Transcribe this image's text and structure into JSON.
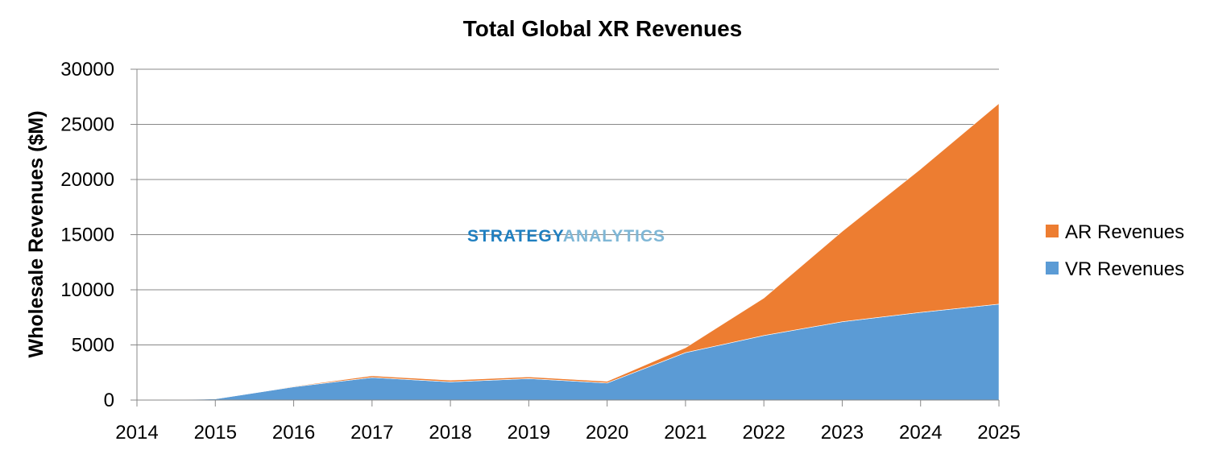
{
  "chart_data": {
    "type": "area",
    "stacked": true,
    "title": "Total Global XR Revenues",
    "xlabel": "",
    "ylabel": "Wholesale Revenues ($M)",
    "ylim": [
      0,
      30000
    ],
    "yticks": [
      "0",
      "5000",
      "10000",
      "15000",
      "20000",
      "25000",
      "30000"
    ],
    "x": [
      "2014",
      "2015",
      "2016",
      "2017",
      "2018",
      "2019",
      "2020",
      "2021",
      "2022",
      "2023",
      "2024",
      "2025"
    ],
    "series": [
      {
        "name": "VR Revenues",
        "color": "#5b9bd5",
        "values": [
          0,
          100,
          1200,
          2050,
          1650,
          1950,
          1550,
          4300,
          5850,
          7100,
          7950,
          8700
        ]
      },
      {
        "name": "AR Revenues",
        "color": "#ed7d31",
        "values": [
          0,
          20,
          50,
          150,
          150,
          150,
          150,
          450,
          3400,
          8200,
          13000,
          18200
        ]
      }
    ],
    "legend_order": [
      "AR Revenues",
      "VR Revenues"
    ],
    "legend_position": "right",
    "grid": true,
    "watermark": {
      "part1": "STRATEGY",
      "part2": "ANALYTICS",
      "color1": "#1f7fc0",
      "color2": "#7fb7d6"
    }
  }
}
